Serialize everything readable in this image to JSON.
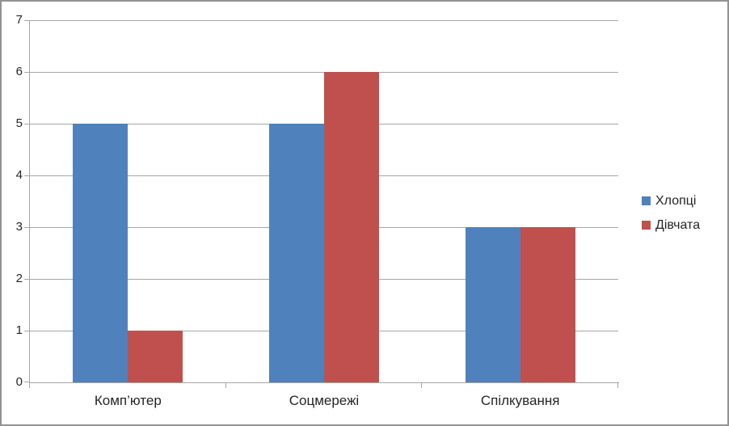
{
  "chart_data": {
    "type": "bar",
    "title": "",
    "categories": [
      "Комп’ютер",
      "Соцмережі",
      "Спілкування"
    ],
    "series": [
      {
        "name": "Хлопці",
        "color": "#4f81bd",
        "values": [
          5,
          5,
          3
        ]
      },
      {
        "name": "Дівчата",
        "color": "#c0504d",
        "values": [
          1,
          6,
          3
        ]
      }
    ],
    "ylim": [
      0,
      7
    ],
    "yticks": [
      0,
      1,
      2,
      3,
      4,
      5,
      6,
      7
    ],
    "grid": true,
    "legend_position": "right",
    "colors": {
      "gridline": "#a6a6a6",
      "axis": "#a6a6a6",
      "text": "#262626",
      "frame_border": "#929292",
      "background": "#ffffff"
    }
  }
}
